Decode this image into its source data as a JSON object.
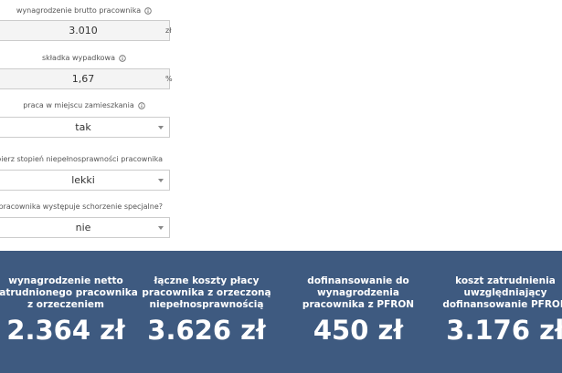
{
  "form": {
    "fields": [
      {
        "label": "wynagrodzenie brutto pracownika",
        "value": "3.010",
        "unit": "zł"
      },
      {
        "label": "składka wypadkowa",
        "value": "1,67",
        "unit": "%"
      },
      {
        "label": "praca w miejscu zamieszkania",
        "value": "tak"
      },
      {
        "label": "wybierz stopień niepełnosprawności pracownika",
        "value": "lekki"
      },
      {
        "label": "zy u pracownika występuje schorzenie specjalne?",
        "value": "nie"
      }
    ]
  },
  "results": [
    {
      "label": "wynagrodzenie netto zatrudnionego pracownika z orzeczeniem",
      "value": "2.364 zł"
    },
    {
      "label": "łączne koszty płacy pracownika z orzeczoną niepełnosprawnością",
      "value": "3.626 zł"
    },
    {
      "label": "dofinansowanie do wynagrodzenia pracownika z PFRON",
      "value": "450 zł"
    },
    {
      "label": "koszt zatrudnienia uwzględniający dofinansowanie PFRON",
      "value": "3.176 zł"
    }
  ]
}
